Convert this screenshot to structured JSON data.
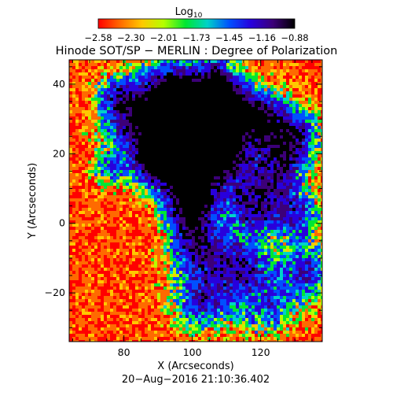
{
  "chart_data": {
    "type": "heatmap",
    "title": "Hinode SOT/SP − MERLIN : Degree of Polarization",
    "colorbar": {
      "label_main": "Log",
      "label_sub": "10",
      "tick_labels": [
        "−2.58",
        "−2.30",
        "−2.01",
        "−1.73",
        "−1.45",
        "−1.16",
        "−0.88"
      ],
      "range": [
        -2.58,
        -0.88
      ],
      "colors": [
        "#ff0000",
        "#ff6a00",
        "#ffc800",
        "#b4ff00",
        "#00e632",
        "#00d2c8",
        "#0050ff",
        "#2800dc",
        "#3c0078",
        "#000000"
      ]
    },
    "xlabel": "X (Arcseconds)",
    "ylabel": "Y (Arcseconds)",
    "xlim": [
      64,
      138
    ],
    "ylim": [
      -34,
      47
    ],
    "xticks": [
      80,
      100,
      120
    ],
    "yticks": [
      -20,
      0,
      20,
      40
    ],
    "timestamp": "20−Aug−2016 21:10:36.402"
  }
}
